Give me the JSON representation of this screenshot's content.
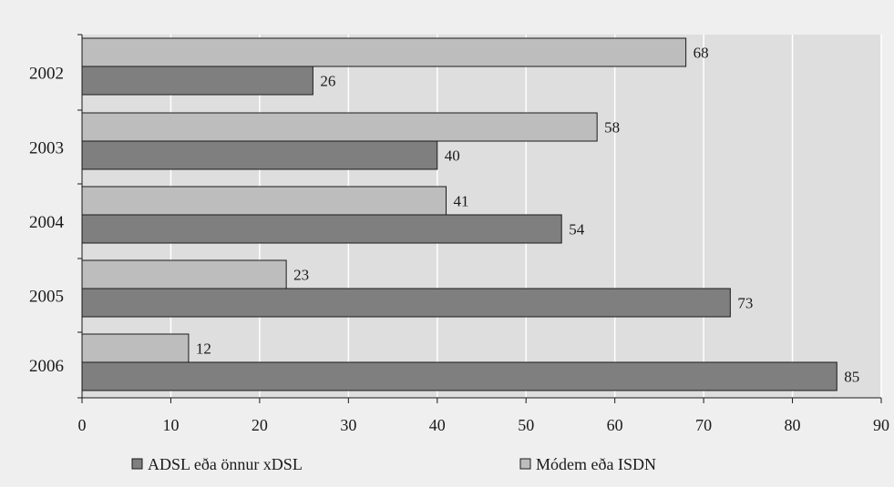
{
  "chart_data": {
    "type": "bar",
    "orientation": "horizontal",
    "categories": [
      "2002",
      "2003",
      "2004",
      "2005",
      "2006"
    ],
    "series": [
      {
        "name": "Módem eða ISDN",
        "values": [
          68,
          58,
          41,
          23,
          12
        ],
        "color": "#bdbdbd"
      },
      {
        "name": "ADSL eða önnur xDSL",
        "values": [
          26,
          40,
          54,
          73,
          85
        ],
        "color": "#7f7f7f"
      }
    ],
    "xlim": [
      0,
      90
    ],
    "xticks": [
      "0",
      "10",
      "20",
      "30",
      "40",
      "50",
      "60",
      "70",
      "80",
      "90"
    ],
    "grid": true,
    "legend_position": "bottom",
    "legend_order": [
      1,
      0
    ],
    "plot_background": "#dedede",
    "page_background": "#efefef",
    "gridline_color": "#ffffff",
    "bar_outline_color": "#1a1a1a"
  }
}
